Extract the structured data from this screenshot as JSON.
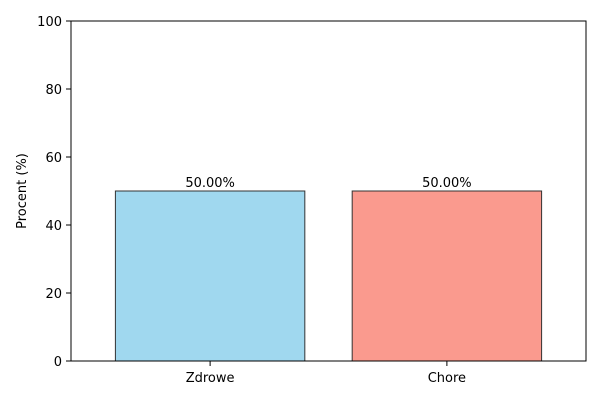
{
  "chart_data": {
    "type": "bar",
    "categories": [
      "Zdrowe",
      "Chore"
    ],
    "values": [
      50.0,
      50.0
    ],
    "data_labels": [
      "50.00%",
      "50.00%"
    ],
    "bar_colors": [
      "#a0d8ef",
      "#fa9a8e"
    ],
    "bar_edge_color": "#333333",
    "title": "",
    "xlabel": "",
    "ylabel": "Procent (%)",
    "ylim": [
      0,
      100
    ],
    "yticks": [
      0,
      20,
      40,
      60,
      80,
      100
    ],
    "grid": false,
    "legend": "none"
  }
}
